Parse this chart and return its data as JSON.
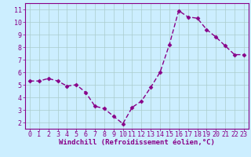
{
  "x": [
    0,
    1,
    2,
    3,
    4,
    5,
    6,
    7,
    8,
    9,
    10,
    11,
    12,
    13,
    14,
    15,
    16,
    17,
    18,
    19,
    20,
    21,
    22,
    23
  ],
  "y": [
    5.3,
    5.3,
    5.5,
    5.3,
    4.9,
    5.0,
    4.4,
    3.3,
    3.1,
    2.5,
    1.9,
    3.2,
    3.7,
    4.8,
    6.0,
    8.2,
    10.9,
    10.4,
    10.3,
    9.4,
    8.8,
    8.1,
    7.4,
    7.4
  ],
  "line_color": "#880088",
  "marker": "D",
  "markersize": 2.5,
  "linewidth": 1.0,
  "xlabel": "Windchill (Refroidissement éolien,°C)",
  "xlim": [
    -0.5,
    23.5
  ],
  "ylim": [
    1.5,
    11.5
  ],
  "yticks": [
    2,
    3,
    4,
    5,
    6,
    7,
    8,
    9,
    10,
    11
  ],
  "xticks": [
    0,
    1,
    2,
    3,
    4,
    5,
    6,
    7,
    8,
    9,
    10,
    11,
    12,
    13,
    14,
    15,
    16,
    17,
    18,
    19,
    20,
    21,
    22,
    23
  ],
  "background_color": "#cceeff",
  "grid_color": "#aacccc",
  "tick_color": "#880088",
  "label_color": "#880088",
  "xlabel_fontsize": 6.5,
  "tick_fontsize": 6.0
}
